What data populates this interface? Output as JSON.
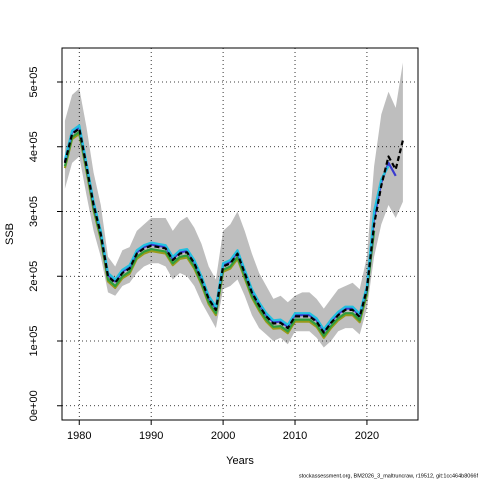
{
  "chart_data": {
    "type": "line",
    "xlabel": "Years",
    "ylabel": "SSB",
    "footer": "stockassessment.org, BM2026_3_maltruncraw, r19512, git:1cc464b8066f",
    "x": [
      1978,
      1979,
      1980,
      1981,
      1982,
      1983,
      1984,
      1985,
      1986,
      1987,
      1988,
      1989,
      1990,
      1991,
      1992,
      1993,
      1994,
      1995,
      1996,
      1997,
      1998,
      1999,
      2000,
      2001,
      2002,
      2003,
      2004,
      2005,
      2006,
      2007,
      2008,
      2009,
      2010,
      2011,
      2012,
      2013,
      2014,
      2015,
      2016,
      2017,
      2018,
      2019,
      2020,
      2021,
      2022,
      2023,
      2024,
      2025
    ],
    "xlim": [
      1977.6,
      2027.1
    ],
    "xticks": [
      1980,
      1990,
      2000,
      2010,
      2020
    ],
    "ylim": [
      -22000,
      552500
    ],
    "yticks": [
      {
        "value": 0,
        "label": "0e+00"
      },
      {
        "value": 100000,
        "label": "1e+05"
      },
      {
        "value": 200000,
        "label": "2e+05"
      },
      {
        "value": 300000,
        "label": "3e+05"
      },
      {
        "value": 400000,
        "label": "4e+05"
      },
      {
        "value": 500000,
        "label": "5e+05"
      }
    ],
    "grid": true,
    "band": {
      "color": "#bebebe",
      "upper": [
        440000,
        480000,
        490000,
        430000,
        360000,
        310000,
        230000,
        215000,
        240000,
        245000,
        270000,
        280000,
        290000,
        290000,
        290000,
        270000,
        285000,
        292000,
        275000,
        250000,
        215000,
        195000,
        270000,
        280000,
        300000,
        270000,
        235000,
        205000,
        185000,
        165000,
        170000,
        160000,
        170000,
        175000,
        175000,
        165000,
        150000,
        165000,
        180000,
        185000,
        190000,
        180000,
        230000,
        370000,
        450000,
        485000,
        460000,
        530000
      ],
      "lower": [
        335000,
        375000,
        385000,
        325000,
        270000,
        230000,
        175000,
        170000,
        185000,
        190000,
        205000,
        215000,
        220000,
        220000,
        215000,
        195000,
        205000,
        200000,
        185000,
        160000,
        140000,
        120000,
        180000,
        185000,
        195000,
        170000,
        140000,
        120000,
        110000,
        100000,
        105000,
        95000,
        115000,
        115000,
        115000,
        105000,
        90000,
        100000,
        115000,
        120000,
        120000,
        110000,
        150000,
        230000,
        280000,
        310000,
        290000,
        315000
      ]
    },
    "series": [
      {
        "color": "#9a9a1a",
        "values": [
          367000,
          412000,
          420000,
          362000,
          302000,
          257000,
          192000,
          182000,
          197000,
          204000,
          227000,
          235000,
          239000,
          237000,
          235000,
          217000,
          227000,
          229000,
          212000,
          187000,
          157000,
          140000,
          207000,
          212000,
          227000,
          197000,
          167000,
          147000,
          130000,
          119000,
          120000,
          112000,
          130000,
          130000,
          130000,
          122000,
          105000,
          120000,
          132000,
          140000,
          140000,
          129000,
          172000,
          null,
          null,
          null,
          null,
          null
        ]
      },
      {
        "color": "#2e9e3e",
        "values": [
          370000,
          415000,
          423000,
          365000,
          305000,
          260000,
          195000,
          185000,
          200000,
          207000,
          230000,
          238000,
          242000,
          240000,
          238000,
          220000,
          230000,
          232000,
          215000,
          190000,
          160000,
          143000,
          210000,
          215000,
          230000,
          200000,
          170000,
          150000,
          133000,
          122000,
          123000,
          115000,
          133000,
          133000,
          133000,
          125000,
          108000,
          123000,
          135000,
          143000,
          143000,
          132000,
          175000,
          270000,
          null,
          null,
          null,
          null
        ]
      },
      {
        "color": "#3a3ad0",
        "values": [
          377000,
          422000,
          430000,
          372000,
          312000,
          267000,
          202000,
          192000,
          207000,
          214000,
          237000,
          245000,
          249000,
          247000,
          245000,
          227000,
          237000,
          239000,
          222000,
          197000,
          167000,
          150000,
          217000,
          222000,
          237000,
          207000,
          177000,
          157000,
          140000,
          129000,
          130000,
          122000,
          140000,
          140000,
          140000,
          132000,
          115000,
          130000,
          142000,
          150000,
          150000,
          139000,
          182000,
          290000,
          345000,
          375000,
          355000,
          null
        ]
      },
      {
        "color": "#22c0e0",
        "values": [
          380000,
          425000,
          433000,
          375000,
          315000,
          270000,
          205000,
          195000,
          210000,
          217000,
          240000,
          248000,
          252000,
          250000,
          248000,
          230000,
          240000,
          242000,
          225000,
          200000,
          170000,
          153000,
          220000,
          225000,
          240000,
          210000,
          180000,
          160000,
          143000,
          132000,
          133000,
          125000,
          143000,
          143000,
          143000,
          135000,
          118000,
          133000,
          145000,
          153000,
          153000,
          142000,
          185000,
          300000,
          350000,
          370000,
          null,
          null
        ]
      },
      {
        "color": "#000000",
        "linestyle": "dashed",
        "values": [
          375000,
          420000,
          428000,
          370000,
          310000,
          265000,
          200000,
          190000,
          205000,
          212000,
          235000,
          243000,
          247000,
          245000,
          243000,
          225000,
          235000,
          237000,
          220000,
          195000,
          165000,
          148000,
          215000,
          220000,
          235000,
          205000,
          175000,
          155000,
          138000,
          127000,
          128000,
          120000,
          138000,
          138000,
          138000,
          130000,
          113000,
          128000,
          140000,
          148000,
          148000,
          137000,
          180000,
          280000,
          340000,
          385000,
          365000,
          410000
        ]
      }
    ]
  }
}
